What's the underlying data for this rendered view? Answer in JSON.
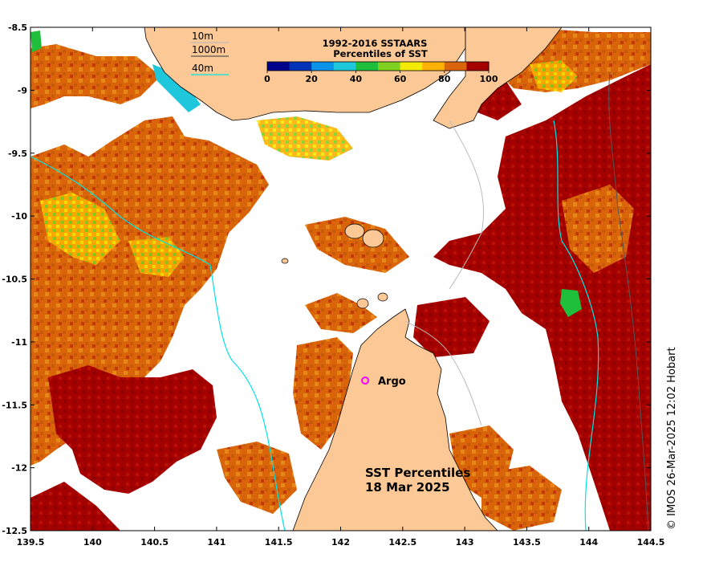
{
  "map": {
    "title_line1": "SST Percentiles",
    "title_line2": "18 Mar 2025",
    "credit": "© IMOS 26-Mar-2025 12:02 Hobart",
    "float_label": "Argo",
    "float_marker_color": "#ff00ff",
    "land_color": "#fcc896",
    "isobath_colors": {
      "10m": "#bbbbbb",
      "1000m": "#555555",
      "40m": "#00e5e5"
    }
  },
  "legend": {
    "depth_10m": "10m",
    "depth_1000m": "1000m",
    "depth_40m": "40m",
    "colorbar_title1": "1992-2016 SSTAARS",
    "colorbar_title2": "Percentiles of SST",
    "colorbar_colors": [
      "#00008b",
      "#0033b5",
      "#0a93e8",
      "#1ec7dc",
      "#1fbf3c",
      "#7fd020",
      "#f2ea00",
      "#ffb100",
      "#d9640a",
      "#a50000"
    ],
    "colorbar_ticks": [
      "0",
      "20",
      "40",
      "60",
      "80",
      "100"
    ]
  },
  "axes": {
    "x_ticks": [
      "139.5",
      "140",
      "140.5",
      "141",
      "141.5",
      "142",
      "142.5",
      "143",
      "143.5",
      "144",
      "144.5"
    ],
    "y_ticks": [
      "-8.5",
      "-9",
      "-9.5",
      "-10",
      "-10.5",
      "-11",
      "-11.5",
      "-12",
      "-12.5"
    ],
    "xlim": [
      139.5,
      144.5
    ],
    "ylim": [
      -12.5,
      -8.5
    ]
  },
  "chart_data": {
    "type": "heatmap",
    "xlim": [
      139.5,
      144.5
    ],
    "ylim": [
      -12.5,
      -8.5
    ],
    "colorbar_range": [
      0,
      100
    ],
    "float": {
      "name": "Argo",
      "lon": 142.2,
      "lat": -11.3
    }
  }
}
